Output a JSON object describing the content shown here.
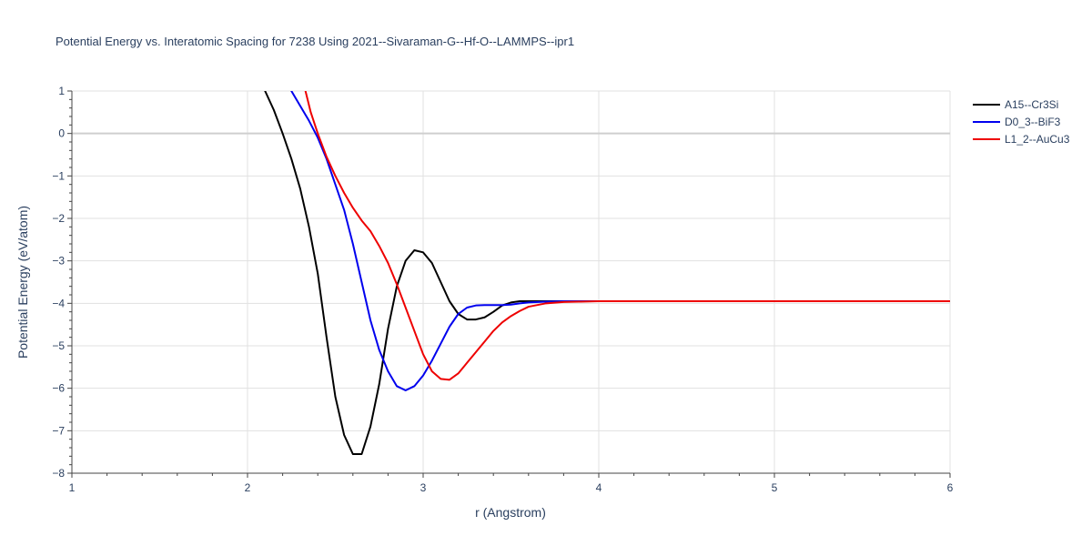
{
  "chart_data": {
    "type": "line",
    "title": "Potential Energy vs. Interatomic Spacing for 7238 Using 2021--Sivaraman-G--Hf-O--LAMMPS--ipr1",
    "xlabel": "r (Angstrom)",
    "ylabel": "Potential Energy (eV/atom)",
    "xlim": [
      1,
      6
    ],
    "ylim": [
      -8,
      1
    ],
    "xticks": [
      1,
      2,
      3,
      4,
      5,
      6
    ],
    "yticks": [
      -8,
      -7,
      -6,
      -5,
      -4,
      -3,
      -2,
      -1,
      0,
      1
    ],
    "xtick_labels": [
      "1",
      "2",
      "3",
      "4",
      "5",
      "6"
    ],
    "ytick_labels": [
      "−8",
      "−7",
      "−6",
      "−5",
      "−4",
      "−3",
      "−2",
      "−1",
      "0",
      "1"
    ],
    "grid": true,
    "legend_position": "top-right",
    "series": [
      {
        "name": "A15--Cr3Si",
        "color": "#000000",
        "x": [
          2.1,
          2.15,
          2.2,
          2.25,
          2.3,
          2.35,
          2.4,
          2.45,
          2.5,
          2.55,
          2.6,
          2.65,
          2.7,
          2.75,
          2.8,
          2.85,
          2.9,
          2.95,
          3.0,
          3.05,
          3.1,
          3.15,
          3.2,
          3.25,
          3.3,
          3.35,
          3.4,
          3.45,
          3.5,
          3.55,
          3.6,
          3.7,
          3.8,
          3.9,
          4.0,
          4.5,
          5.0,
          5.5,
          6.0
        ],
        "y": [
          1.0,
          0.55,
          0.0,
          -0.6,
          -1.3,
          -2.2,
          -3.3,
          -4.8,
          -6.2,
          -7.1,
          -7.55,
          -7.55,
          -6.9,
          -5.9,
          -4.6,
          -3.6,
          -3.0,
          -2.75,
          -2.8,
          -3.05,
          -3.5,
          -3.95,
          -4.25,
          -4.38,
          -4.38,
          -4.33,
          -4.2,
          -4.05,
          -3.98,
          -3.95,
          -3.95,
          -3.95,
          -3.95,
          -3.95,
          -3.95,
          -3.95,
          -3.95,
          -3.95,
          -3.95
        ]
      },
      {
        "name": "D0_3--BiF3",
        "color": "#0000ee",
        "x": [
          2.25,
          2.3,
          2.35,
          2.4,
          2.45,
          2.5,
          2.55,
          2.6,
          2.65,
          2.7,
          2.75,
          2.8,
          2.85,
          2.9,
          2.95,
          3.0,
          3.05,
          3.1,
          3.15,
          3.2,
          3.25,
          3.3,
          3.35,
          3.4,
          3.45,
          3.5,
          3.55,
          3.6,
          3.7,
          3.8,
          3.9,
          4.0,
          4.5,
          5.0,
          5.5,
          6.0
        ],
        "y": [
          1.0,
          0.65,
          0.3,
          -0.1,
          -0.6,
          -1.2,
          -1.8,
          -2.6,
          -3.5,
          -4.4,
          -5.1,
          -5.6,
          -5.95,
          -6.05,
          -5.95,
          -5.7,
          -5.35,
          -4.95,
          -4.55,
          -4.25,
          -4.1,
          -4.05,
          -4.04,
          -4.04,
          -4.04,
          -4.03,
          -4.0,
          -3.98,
          -3.96,
          -3.95,
          -3.95,
          -3.95,
          -3.95,
          -3.95,
          -3.95,
          -3.95
        ]
      },
      {
        "name": "L1_2--AuCu3",
        "color": "#ee0000",
        "x": [
          2.33,
          2.36,
          2.4,
          2.45,
          2.5,
          2.55,
          2.6,
          2.65,
          2.7,
          2.75,
          2.8,
          2.85,
          2.9,
          2.95,
          3.0,
          3.05,
          3.1,
          3.15,
          3.2,
          3.25,
          3.3,
          3.35,
          3.4,
          3.45,
          3.5,
          3.55,
          3.6,
          3.7,
          3.8,
          3.9,
          4.0,
          4.5,
          5.0,
          5.5,
          6.0
        ],
        "y": [
          1.0,
          0.5,
          0.0,
          -0.55,
          -1.0,
          -1.4,
          -1.75,
          -2.05,
          -2.3,
          -2.65,
          -3.05,
          -3.55,
          -4.1,
          -4.65,
          -5.2,
          -5.6,
          -5.78,
          -5.8,
          -5.65,
          -5.4,
          -5.15,
          -4.9,
          -4.65,
          -4.45,
          -4.3,
          -4.18,
          -4.08,
          -4.0,
          -3.97,
          -3.96,
          -3.95,
          -3.95,
          -3.95,
          -3.95,
          -3.95
        ]
      }
    ]
  }
}
